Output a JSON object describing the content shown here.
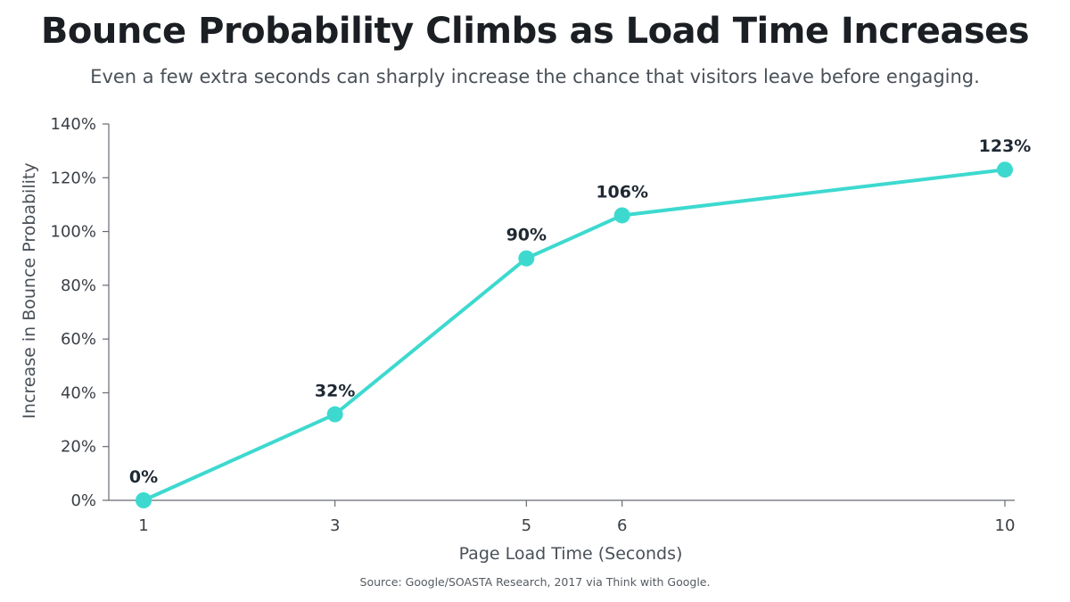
{
  "title": "Bounce Probability Climbs as Load Time Increases",
  "subtitle": "Even a few extra seconds can sharply increase the chance that visitors leave before engaging.",
  "source": "Source: Google/SOASTA Research, 2017 via Think with Google.",
  "colors": {
    "line": "#3dd9cf",
    "axis": "#666b70",
    "text": "#1f2933"
  },
  "chart_data": {
    "type": "line",
    "xlabel": "Page Load Time (Seconds)",
    "ylabel": "Increase in Bounce Probability",
    "x": [
      1,
      3,
      5,
      6,
      10
    ],
    "x_tick_labels": [
      "1",
      "3",
      "5",
      "6",
      "10"
    ],
    "values": [
      0,
      32,
      90,
      106,
      123
    ],
    "data_labels": [
      "0%",
      "32%",
      "90%",
      "106%",
      "123%"
    ],
    "xlim": [
      1,
      10
    ],
    "ylim": [
      0,
      140
    ],
    "y_ticks": [
      0,
      20,
      40,
      60,
      80,
      100,
      120,
      140
    ],
    "y_tick_labels": [
      "0%",
      "20%",
      "40%",
      "60%",
      "80%",
      "100%",
      "120%",
      "140%"
    ],
    "grid": false,
    "legend": "none"
  }
}
